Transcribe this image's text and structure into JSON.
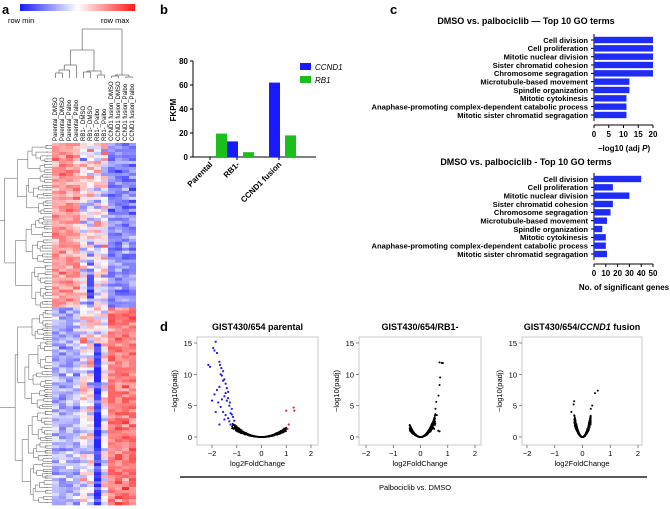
{
  "panel_labels": {
    "a": "a",
    "b": "b",
    "c": "c",
    "d": "d"
  },
  "colors": {
    "blue": "#1a1aff",
    "green": "#1bbf1b",
    "red": "#e8201f",
    "go_bar": "#1f2cf5"
  },
  "chart_data": [
    {
      "id": "a",
      "type": "heatmap",
      "colorbar": {
        "min_label": "row min",
        "max_label": "row max"
      },
      "columns": [
        "Parental_DMSO",
        "Parental_DMSO",
        "Parental_Palbo",
        "Parental_Palbo",
        "RB1-_DMSO",
        "RB1-_DMSO",
        "RB1-_Palbo",
        "RB1-_Palbo",
        "CCND1 fusion_DMSO",
        "CCND1 fusion_DMSO",
        "CCND1 fusion_Palbo",
        "CCND1 fusion_Palbo"
      ]
    },
    {
      "id": "b",
      "type": "bar",
      "ylabel": "FKPM",
      "ylim": [
        0,
        80
      ],
      "yticks": [
        "0",
        "20",
        "40",
        "60",
        "80"
      ],
      "categories": [
        "Parental",
        "RB1-",
        "CCND1 fusion"
      ],
      "series": [
        {
          "name": "CCND1",
          "values": [
            0,
            13,
            62
          ]
        },
        {
          "name": "RB1",
          "values": [
            19.5,
            4,
            18
          ]
        }
      ],
      "legend": "top-right"
    },
    {
      "id": "c-top",
      "type": "bar",
      "orientation": "horizontal",
      "title": "DMSO vs. palbociclib — Top 10 GO terms",
      "xlabel": "−log10 (adj ",
      "xlabel_italic": "P",
      "xlabel_end": ")",
      "xlim": [
        0,
        20
      ],
      "xticks": [
        "0",
        "5",
        "10",
        "15",
        "20"
      ],
      "categories": [
        "Cell division",
        "Cell proliferation",
        "Mitotic nuclear division",
        "Sister chromatid cohesion",
        "Chromosome segragation",
        "Microtubule-based movement",
        "Spindle organization",
        "Mitotic cytokinesis",
        "Anaphase-promoting complex-dependent catabolic process",
        "Mitotic sister chromatid segragation"
      ],
      "values": [
        20,
        20,
        20,
        20,
        20,
        12,
        12,
        11,
        11,
        11
      ]
    },
    {
      "id": "c-bottom",
      "type": "bar",
      "orientation": "horizontal",
      "title": "DMSO vs. palbociclib - Top 10 GO terms",
      "xlabel": "No. of significant genes",
      "xlim": [
        0,
        50
      ],
      "xticks": [
        "0",
        "10",
        "20",
        "30",
        "40",
        "50"
      ],
      "categories": [
        "Cell division",
        "Cell proliferation",
        "Mitotic nuclear division",
        "Sister chromatid cohesion",
        "Chromosome segragation",
        "Microtubule-based movement",
        "Spindle organization",
        "Mitotic cytokinesis",
        "Anaphase-promoting complex-dependent catabolic process",
        "Mitotic sister chromatid segragation"
      ],
      "values": [
        40,
        16,
        30,
        16,
        14,
        11,
        7,
        10,
        10,
        11
      ]
    },
    {
      "id": "d",
      "type": "scatter",
      "shared_label": "Palbociclib vs. DMSO",
      "xlabel": "log2FoldChange",
      "ylabel": "−log10(padj)",
      "xlim": [
        -2.5,
        2.2
      ],
      "ylim": [
        0,
        16
      ],
      "xticks": [
        "−2",
        "−1",
        "0",
        "1",
        "2"
      ],
      "yticks": [
        "0",
        "5",
        "10",
        "15"
      ],
      "plots": [
        {
          "title_pre": "GIST430/654 parental",
          "title_it": "",
          "title_post": "",
          "cloud": {
            "xmin": -1.2,
            "xmax": 1.0,
            "k": 1.6
          },
          "down": [
            [
              -1.85,
              15.2
            ],
            [
              -1.95,
              14.2
            ],
            [
              -1.9,
              13.8
            ],
            [
              -1.8,
              13.4
            ],
            [
              -2.15,
              11.5
            ],
            [
              -2.08,
              11.2
            ],
            [
              -1.7,
              12.0
            ],
            [
              -1.68,
              11.5
            ],
            [
              -1.62,
              11.0
            ],
            [
              -1.55,
              10.5
            ],
            [
              -1.6,
              9.8
            ],
            [
              -1.5,
              9.2
            ],
            [
              -1.45,
              8.5
            ],
            [
              -1.4,
              7.8
            ],
            [
              -1.35,
              7.2
            ],
            [
              -1.7,
              8.0
            ],
            [
              -1.8,
              7.5
            ],
            [
              -1.9,
              6.8
            ],
            [
              -2.0,
              5.8
            ],
            [
              -1.75,
              5.5
            ],
            [
              -1.65,
              4.8
            ],
            [
              -1.55,
              4.0
            ],
            [
              -1.45,
              3.5
            ],
            [
              -1.35,
              3.0
            ],
            [
              -1.3,
              2.5
            ],
            [
              -1.25,
              2.0
            ],
            [
              -1.5,
              6.5
            ],
            [
              -1.4,
              5.8
            ],
            [
              -1.3,
              5.0
            ],
            [
              -1.2,
              4.5
            ],
            [
              -1.25,
              3.8
            ],
            [
              -1.15,
              3.2
            ],
            [
              -1.1,
              2.6
            ],
            [
              -1.6,
              6.0
            ],
            [
              -1.85,
              4.0
            ],
            [
              -1.7,
              2.0
            ],
            [
              -1.5,
              2.8
            ],
            [
              -1.55,
              9.0
            ],
            [
              -1.65,
              10.0
            ],
            [
              -1.45,
              7.0
            ],
            [
              -1.35,
              6.2
            ],
            [
              -1.28,
              5.5
            ],
            [
              -1.2,
              3.6
            ]
          ],
          "up": [
            [
              1.0,
              4.2
            ],
            [
              1.3,
              4.7
            ],
            [
              1.33,
              4.2
            ],
            [
              1.1,
              2.0
            ],
            [
              1.05,
              1.3
            ]
          ]
        },
        {
          "title_pre": "GIST430/654/RB1-",
          "title_it": "",
          "title_post": "",
          "cloud": {
            "xmin": -0.4,
            "xmax": 0.55,
            "k": 12
          },
          "down": [],
          "up": [],
          "extra": [
            [
              0.7,
              11.9
            ],
            [
              0.78,
              11.8
            ],
            [
              0.82,
              11.8
            ],
            [
              0.72,
              9.5
            ],
            [
              0.7,
              8.3
            ],
            [
              0.66,
              6.6
            ],
            [
              0.58,
              5.6
            ],
            [
              0.55,
              4.5
            ],
            [
              0.6,
              3.5
            ],
            [
              0.65,
              1.0
            ],
            [
              0.7,
              0.9
            ],
            [
              0.5,
              1.3
            ]
          ]
        },
        {
          "title_pre": "GIST430/654/",
          "title_it": "CCND1",
          "title_post": " fusion",
          "cloud": {
            "xmin": -0.3,
            "xmax": 0.3,
            "k": 40
          },
          "down": [],
          "up": [],
          "extra": [
            [
              -0.3,
              5.7
            ],
            [
              -0.32,
              5.2
            ],
            [
              -0.4,
              4.0
            ],
            [
              0.55,
              7.4
            ],
            [
              0.45,
              7.0
            ],
            [
              0.35,
              5.0
            ],
            [
              0.3,
              4.5
            ]
          ]
        }
      ]
    }
  ]
}
